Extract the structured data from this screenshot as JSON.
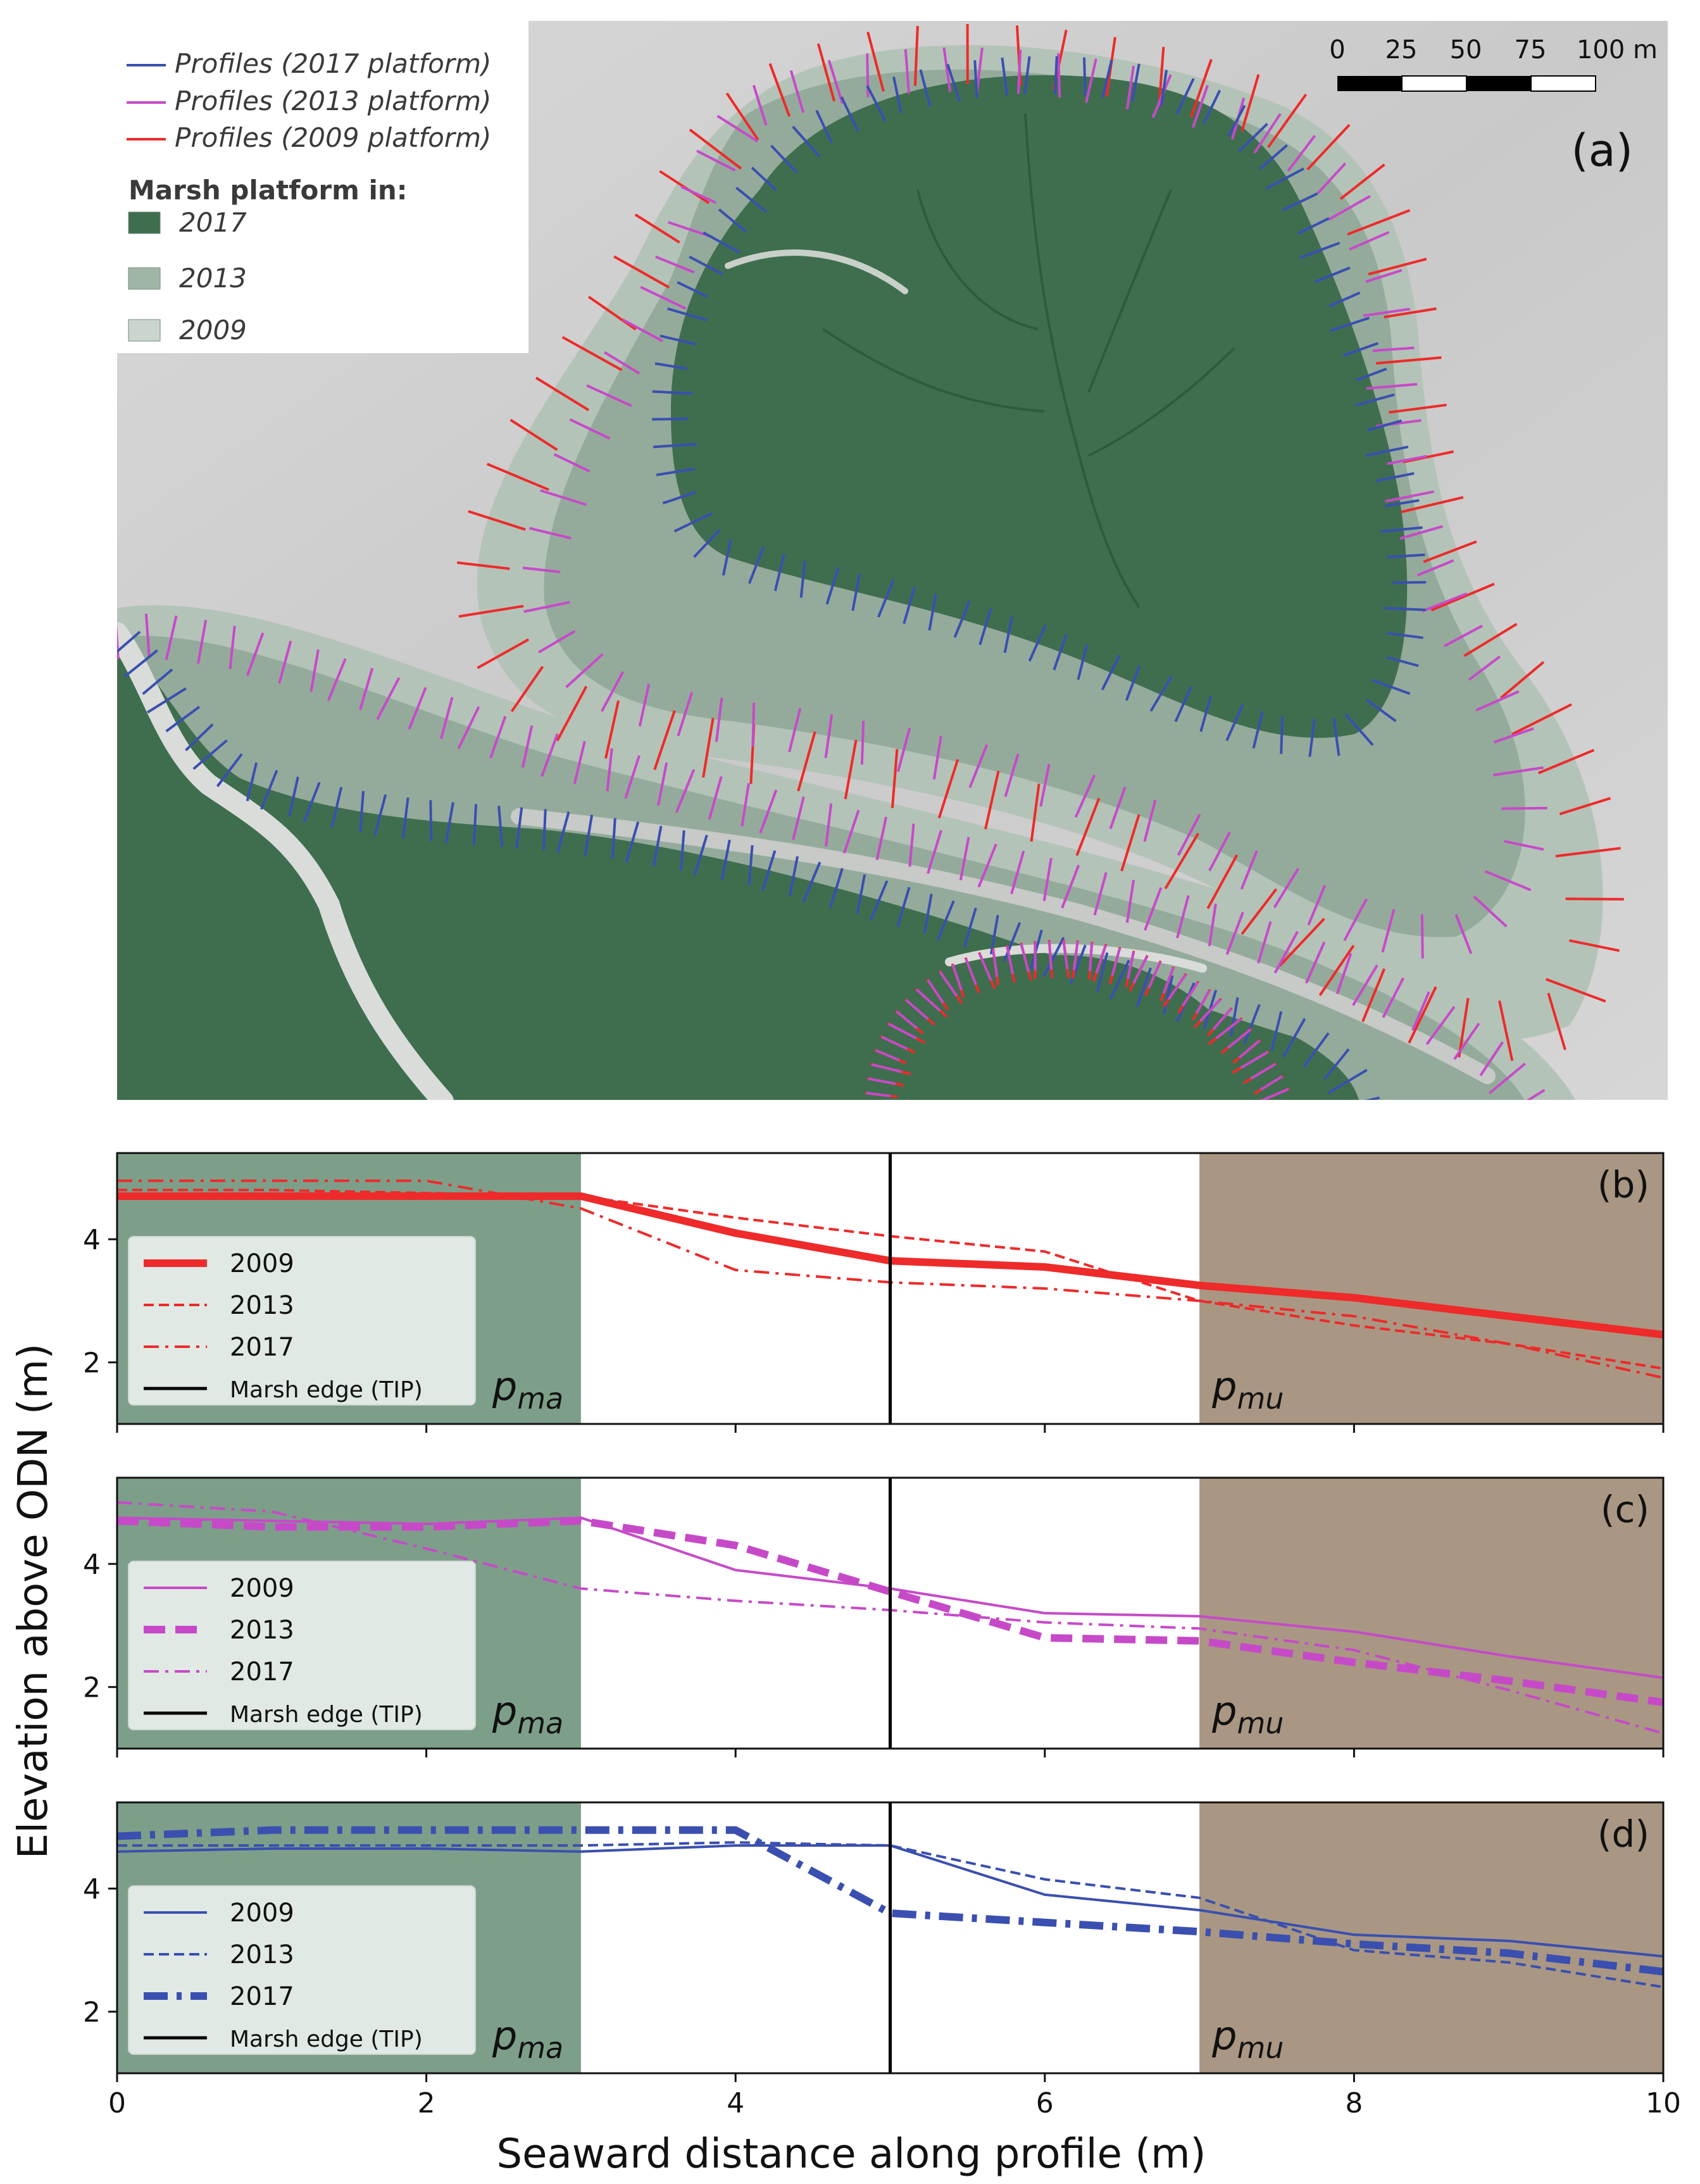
{
  "map": {
    "panel_label": "(a)",
    "scalebar": {
      "ticks": [
        "0",
        "25",
        "50",
        "75",
        "100 m"
      ]
    },
    "legend": {
      "profiles": [
        {
          "label": "Profiles (2017 platform)",
          "color": "#3a4fb0"
        },
        {
          "label": "Profiles (2013 platform)",
          "color": "#c64ac8"
        },
        {
          "label": "Profiles (2009 platform)",
          "color": "#ee2a2a"
        }
      ],
      "platform_title": "Marsh platform in:",
      "platforms": [
        {
          "label": "2017",
          "color": "#3f6e4f"
        },
        {
          "label": "2013",
          "color": "#9fb5a5"
        },
        {
          "label": "2009",
          "color": "#cad6cd"
        }
      ]
    }
  },
  "chart_data": [
    {
      "type": "line",
      "panel": "(b)",
      "color": "#ee2a2a",
      "x": [
        0,
        1,
        2,
        3,
        4,
        5,
        6,
        7,
        8,
        9,
        10
      ],
      "series": [
        {
          "name": "2009",
          "style": "solid-thick",
          "values": [
            4.7,
            4.7,
            4.7,
            4.7,
            4.1,
            3.65,
            3.55,
            3.25,
            3.05,
            2.75,
            2.45
          ]
        },
        {
          "name": "2013",
          "style": "dashed",
          "values": [
            4.8,
            4.8,
            4.75,
            4.7,
            4.35,
            4.05,
            3.8,
            3.0,
            2.6,
            2.3,
            1.9
          ]
        },
        {
          "name": "2017",
          "style": "dashdot",
          "values": [
            4.95,
            4.95,
            4.95,
            4.5,
            3.5,
            3.3,
            3.2,
            3.0,
            2.75,
            2.3,
            1.75
          ]
        },
        {
          "name": "Marsh edge (TIP)",
          "style": "vline",
          "x": 5
        }
      ],
      "regions": [
        {
          "label": "p_ma",
          "x0": 0,
          "x1": 3,
          "color": "#7d9f89"
        },
        {
          "label": "p_mu",
          "x0": 7,
          "x1": 10,
          "color": "#a99783"
        }
      ],
      "xlim": [
        0,
        10
      ],
      "ylim": [
        1.0,
        5.4
      ],
      "yticks": [
        2,
        4
      ]
    },
    {
      "type": "line",
      "panel": "(c)",
      "color": "#c64ac8",
      "x": [
        0,
        1,
        2,
        3,
        4,
        5,
        6,
        7,
        8,
        9,
        10
      ],
      "series": [
        {
          "name": "2009",
          "style": "solid",
          "values": [
            4.75,
            4.7,
            4.65,
            4.75,
            3.9,
            3.6,
            3.2,
            3.15,
            2.9,
            2.5,
            2.15
          ]
        },
        {
          "name": "2013",
          "style": "dashed-thick",
          "values": [
            4.7,
            4.6,
            4.6,
            4.7,
            4.3,
            3.55,
            2.8,
            2.75,
            2.4,
            2.1,
            1.75
          ]
        },
        {
          "name": "2017",
          "style": "dashdot",
          "values": [
            5.0,
            4.85,
            4.25,
            3.6,
            3.4,
            3.25,
            3.05,
            2.95,
            2.6,
            1.95,
            1.25
          ]
        },
        {
          "name": "Marsh edge (TIP)",
          "style": "vline",
          "x": 5
        }
      ],
      "regions": [
        {
          "label": "p_ma",
          "x0": 0,
          "x1": 3,
          "color": "#7d9f89"
        },
        {
          "label": "p_mu",
          "x0": 7,
          "x1": 10,
          "color": "#a99783"
        }
      ],
      "xlim": [
        0,
        10
      ],
      "ylim": [
        1.0,
        5.4
      ],
      "yticks": [
        2,
        4
      ]
    },
    {
      "type": "line",
      "panel": "(d)",
      "color": "#3a4fb0",
      "x": [
        0,
        1,
        2,
        3,
        4,
        5,
        6,
        7,
        8,
        9,
        10
      ],
      "series": [
        {
          "name": "2009",
          "style": "solid",
          "values": [
            4.6,
            4.65,
            4.65,
            4.6,
            4.7,
            4.7,
            3.9,
            3.65,
            3.25,
            3.15,
            2.9
          ]
        },
        {
          "name": "2013",
          "style": "dashed",
          "values": [
            4.7,
            4.7,
            4.7,
            4.7,
            4.75,
            4.7,
            4.15,
            3.85,
            3.0,
            2.8,
            2.4
          ]
        },
        {
          "name": "2017",
          "style": "dashdot-thick",
          "values": [
            4.85,
            4.95,
            4.95,
            4.95,
            4.95,
            3.6,
            3.45,
            3.3,
            3.1,
            2.95,
            2.65
          ]
        },
        {
          "name": "Marsh edge (TIP)",
          "style": "vline",
          "x": 5
        }
      ],
      "regions": [
        {
          "label": "p_ma",
          "x0": 0,
          "x1": 3,
          "color": "#7d9f89"
        },
        {
          "label": "p_mu",
          "x0": 7,
          "x1": 10,
          "color": "#a99783"
        }
      ],
      "xlim": [
        0,
        10
      ],
      "ylim": [
        1.0,
        5.4
      ],
      "yticks": [
        2,
        4
      ]
    }
  ],
  "axes": {
    "xlabel": "Seaward distance along profile (m)",
    "ylabel": "Elevation above ODN (m)",
    "xticks": [
      "0",
      "2",
      "4",
      "6",
      "8",
      "10"
    ],
    "legend_edge_label": "Marsh edge (TIP)",
    "region_labels": {
      "ma_base": "p",
      "ma_sub": "ma",
      "mu_base": "p",
      "mu_sub": "mu"
    }
  }
}
